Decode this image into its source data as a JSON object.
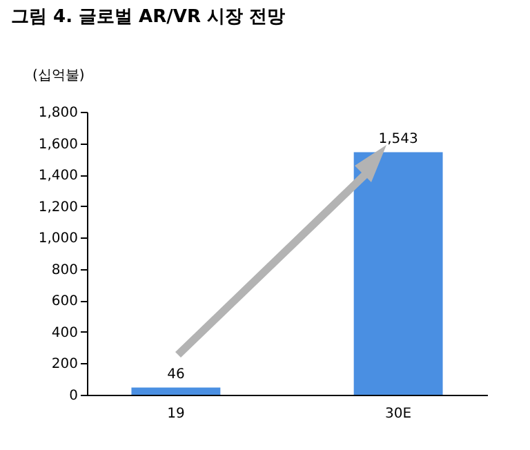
{
  "chart_data": {
    "type": "bar",
    "title": "그림 4. 글로벌 AR/VR 시장 전망",
    "ylabel": "(십억불)",
    "categories": [
      "19",
      "30E"
    ],
    "values": [
      46,
      1543
    ],
    "color": "#4a8fe2",
    "value_labels": [
      "46",
      "1,543"
    ],
    "ylim": [
      0,
      1800
    ],
    "yticks": [
      0,
      200,
      400,
      600,
      800,
      {
        "value": 1000,
        "label": "1,000"
      },
      {
        "value": 1200,
        "label": "1,200"
      },
      {
        "value": 1400,
        "label": "1,400"
      },
      {
        "value": 1600,
        "label": "1,600"
      },
      {
        "value": 1800,
        "label": "1,800"
      }
    ],
    "grid": false
  }
}
